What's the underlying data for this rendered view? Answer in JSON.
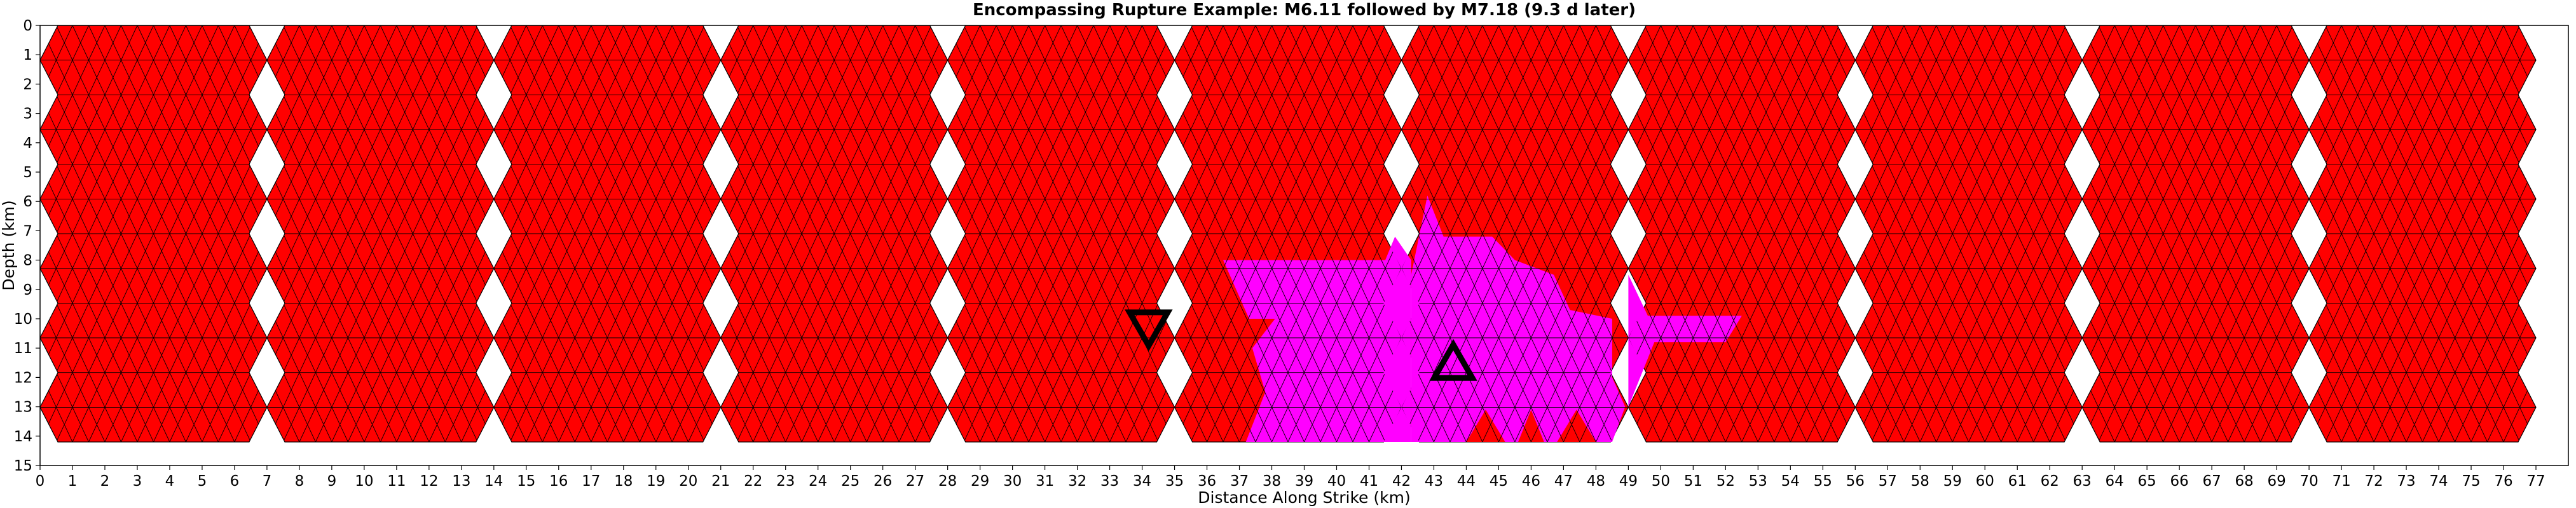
{
  "chart_data": {
    "type": "heatmap",
    "title": "Encompassing Rupture Example: M6.11 followed by M7.18 (9.3 d later)",
    "xlabel": "Distance Along Strike (km)",
    "ylabel": "Depth (km)",
    "xlim": [
      0,
      78
    ],
    "ylim": [
      15,
      0
    ],
    "x_ticks": [
      0,
      1,
      2,
      3,
      4,
      5,
      6,
      7,
      8,
      9,
      10,
      11,
      12,
      13,
      14,
      15,
      16,
      17,
      18,
      19,
      20,
      21,
      22,
      23,
      24,
      25,
      26,
      27,
      28,
      29,
      30,
      31,
      32,
      33,
      34,
      35,
      36,
      37,
      38,
      39,
      40,
      41,
      42,
      43,
      44,
      45,
      46,
      47,
      48,
      49,
      50,
      51,
      52,
      53,
      54,
      55,
      56,
      57,
      58,
      59,
      60,
      61,
      62,
      63,
      64,
      65,
      66,
      67,
      68,
      69,
      70,
      71,
      72,
      73,
      74,
      75,
      76,
      77
    ],
    "y_ticks": [
      0,
      1,
      2,
      3,
      4,
      5,
      6,
      7,
      8,
      9,
      10,
      11,
      12,
      13,
      14,
      15
    ],
    "grid": false,
    "colors": {
      "background_fault": "#ff0000",
      "rupture": "#ff00ff",
      "edge": "#000000",
      "marker": "#000000"
    },
    "fault_segments": [
      {
        "x_start": 0,
        "x_end": 7
      },
      {
        "x_start": 7,
        "x_end": 14
      },
      {
        "x_start": 14,
        "x_end": 21
      },
      {
        "x_start": 21,
        "x_end": 28
      },
      {
        "x_start": 28,
        "x_end": 35
      },
      {
        "x_start": 35,
        "x_end": 42
      },
      {
        "x_start": 42,
        "x_end": 49
      },
      {
        "x_start": 49,
        "x_end": 56
      },
      {
        "x_start": 56,
        "x_end": 63
      },
      {
        "x_start": 63,
        "x_end": 70
      },
      {
        "x_start": 70,
        "x_end": 77
      }
    ],
    "fault_depth_range": [
      0,
      14.2
    ],
    "rupture_zones": [
      {
        "polygon": [
          [
            36.5,
            8.0
          ],
          [
            41.5,
            8.0
          ],
          [
            41.8,
            7.2
          ],
          [
            42.3,
            8.0
          ],
          [
            42.3,
            14.2
          ],
          [
            37.2,
            14.2
          ],
          [
            37.8,
            12.5
          ],
          [
            37.4,
            11.0
          ],
          [
            38.1,
            10.0
          ],
          [
            37.3,
            10.0
          ]
        ]
      },
      {
        "polygon": [
          [
            42.3,
            8.5
          ],
          [
            42.3,
            14.2
          ],
          [
            48.5,
            14.2
          ],
          [
            48.9,
            13.0
          ],
          [
            48.5,
            12.0
          ],
          [
            48.5,
            10.0
          ],
          [
            47.2,
            9.7
          ],
          [
            46.7,
            8.5
          ],
          [
            45.5,
            8.0
          ],
          [
            44.8,
            7.2
          ],
          [
            43.3,
            7.2
          ],
          [
            42.8,
            5.8
          ]
        ]
      },
      {
        "polygon": [
          [
            49.0,
            8.5
          ],
          [
            49.6,
            9.9
          ],
          [
            52.5,
            9.9
          ],
          [
            52.0,
            10.8
          ],
          [
            49.8,
            10.8
          ],
          [
            49.0,
            13.0
          ]
        ]
      }
    ],
    "non_rupture_notches": [
      {
        "polygon": [
          [
            44.0,
            14.2
          ],
          [
            44.6,
            13.1
          ],
          [
            45.2,
            14.2
          ]
        ]
      },
      {
        "polygon": [
          [
            45.6,
            14.2
          ],
          [
            46.0,
            13.1
          ],
          [
            46.4,
            14.2
          ]
        ]
      },
      {
        "polygon": [
          [
            46.8,
            14.2
          ],
          [
            47.4,
            13.1
          ],
          [
            48.0,
            14.2
          ]
        ]
      }
    ],
    "markers": [
      {
        "type": "triangle-down",
        "x": 34.2,
        "y": 10.3
      },
      {
        "type": "triangle-up",
        "x": 43.6,
        "y": 11.5
      }
    ]
  }
}
